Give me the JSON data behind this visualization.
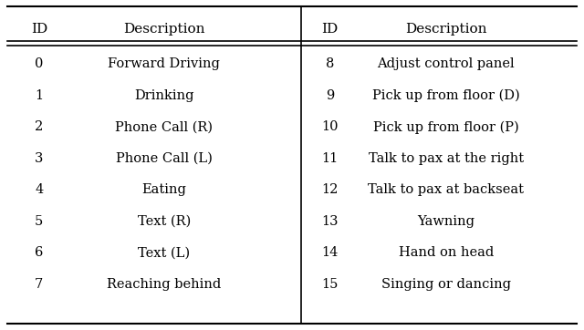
{
  "left_ids": [
    0,
    1,
    2,
    3,
    4,
    5,
    6,
    7
  ],
  "left_descriptions": [
    "Forward Driving",
    "Drinking",
    "Phone Call (R)",
    "Phone Call (L)",
    "Eating",
    "Text (R)",
    "Text (L)",
    "Reaching behind"
  ],
  "right_ids": [
    8,
    9,
    10,
    11,
    12,
    13,
    14,
    15
  ],
  "right_descriptions": [
    "Adjust control panel",
    "Pick up from floor (D)",
    "Pick up from floor (P)",
    "Talk to pax at the right",
    "Talk to pax at backseat",
    "Yawning",
    "Hand on head",
    "Singing or dancing"
  ],
  "col_headers": [
    "ID",
    "Description",
    "ID",
    "Description"
  ],
  "bg_color": "#ffffff",
  "text_color": "#000000",
  "header_fontsize": 11,
  "body_fontsize": 10.5,
  "figsize": [
    6.4,
    3.62
  ],
  "dpi": 100
}
